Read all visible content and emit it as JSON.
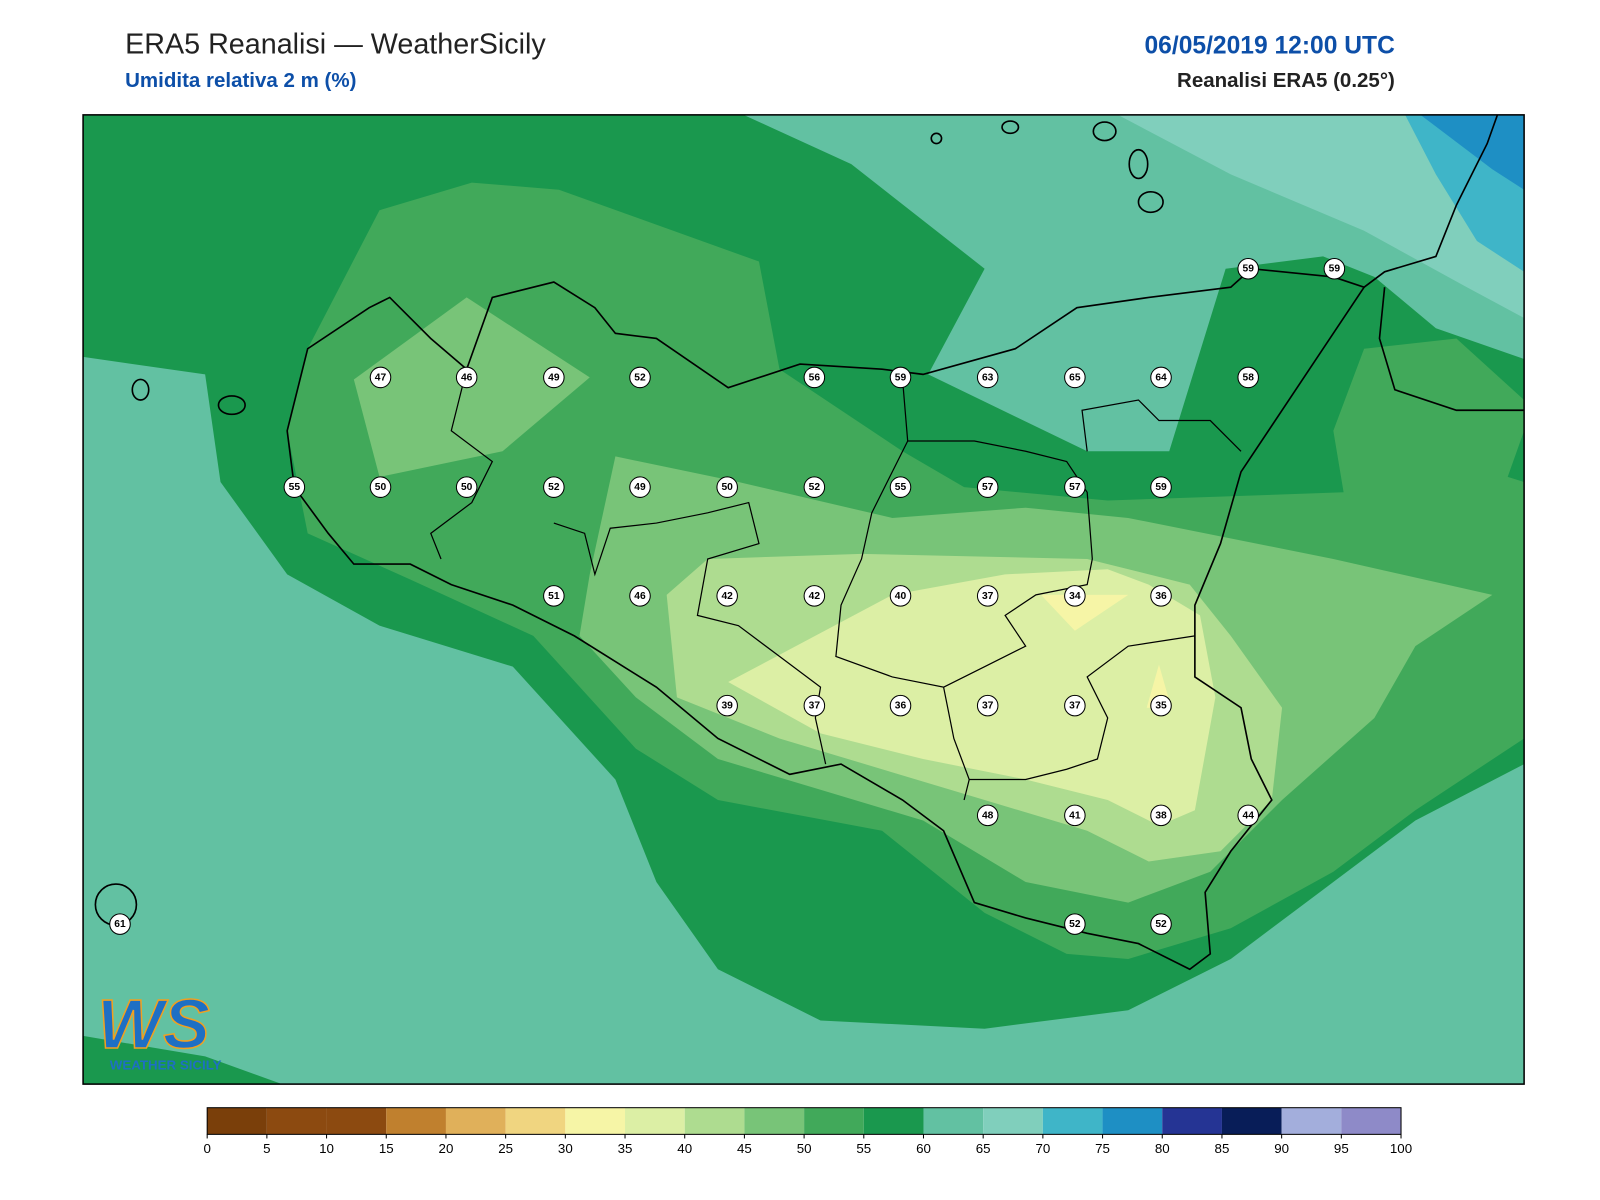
{
  "header": {
    "title": "ERA5 Reanalisi — WeatherSicily",
    "subtitle": "Umidita relativa 2 m (%)",
    "datetime": "06/05/2019 12:00 UTC",
    "source": "Reanalisi ERA5 (0.25°)"
  },
  "stations": [
    59,
    59,
    47,
    46,
    49,
    52,
    56,
    59,
    63,
    65,
    64,
    58,
    55,
    50,
    50,
    52,
    49,
    50,
    52,
    55,
    57,
    57,
    59,
    51,
    46,
    42,
    42,
    40,
    37,
    34,
    36,
    39,
    37,
    36,
    37,
    37,
    35,
    48,
    41,
    38,
    44,
    61,
    52,
    52
  ],
  "colorbar": {
    "ticks": [
      0,
      5,
      10,
      15,
      20,
      25,
      30,
      35,
      40,
      45,
      50,
      55,
      60,
      65,
      70,
      75,
      80,
      85,
      90,
      95,
      100
    ],
    "colors": [
      "#7a3f0a",
      "#8c4a10",
      "#8c4a10",
      "#c0802e",
      "#e0b05a",
      "#f0d580",
      "#f6f5a6",
      "#dcefa5",
      "#aedc90",
      "#78c478",
      "#41a95a",
      "#1a984e",
      "#62c1a2",
      "#80cfbc",
      "#3fb5c8",
      "#1e8fc4",
      "#253494",
      "#081d58",
      "#a3aedc",
      "#8e8ac8"
    ]
  },
  "logo": {
    "mark": "WS",
    "caption": "WEATHER SICILY"
  }
}
